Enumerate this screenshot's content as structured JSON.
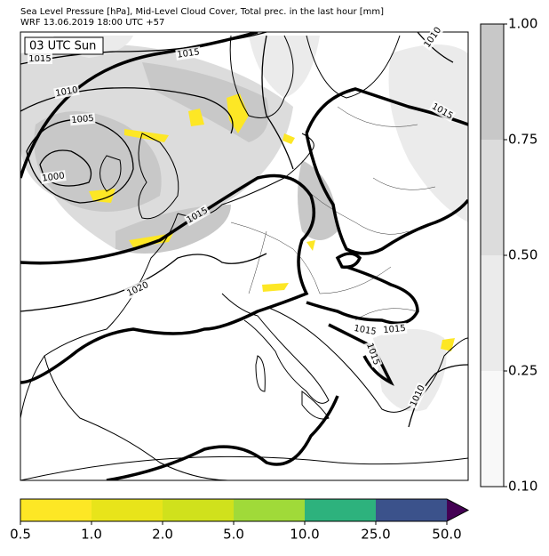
{
  "header": {
    "line1": "Sea Level Pressure [hPa], Mid-Level Cloud Cover, Total prec. in the last hour [mm]",
    "line2": "WRF 13.06.2019 18:00 UTC +57"
  },
  "map": {
    "time_label": "03 UTC Sun",
    "isobar_labels": [
      "1015",
      "1015",
      "1010",
      "1005",
      "1000",
      "1015",
      "1020",
      "1015",
      "1010",
      "1015",
      "1015",
      "1015",
      "1010"
    ]
  },
  "cloud_colorbar": {
    "ticks": [
      "1.00",
      "0.75",
      "0.50",
      "0.25",
      "0.10"
    ]
  },
  "precip_colorbar": {
    "ticks": [
      "0.5",
      "1.0",
      "2.0",
      "5.0",
      "10.0",
      "25.0",
      "50.0"
    ]
  }
}
